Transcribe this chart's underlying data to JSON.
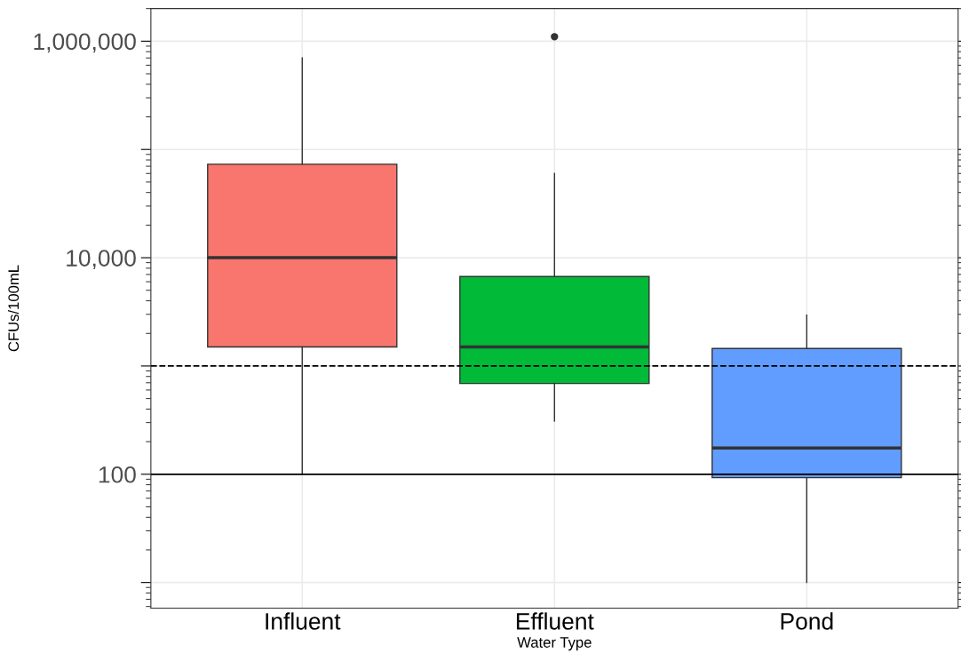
{
  "chart_data": {
    "type": "box",
    "xlabel": "Water Type",
    "ylabel": "CFUs/100mL",
    "categories": [
      "Influent",
      "Effluent",
      "Pond"
    ],
    "colors": [
      "#f8766d",
      "#00ba38",
      "#619cff"
    ],
    "boxes": [
      {
        "low": 100,
        "q1": 1500,
        "median": 10000,
        "q3": 73000,
        "high": 700000
      },
      {
        "low": 310,
        "q1": 690,
        "median": 1500,
        "q3": 6700,
        "high": 60000,
        "outliers": [
          1100000
        ]
      },
      {
        "low": 10,
        "q1": 93,
        "median": 175,
        "q3": 1450,
        "high": 2950
      }
    ],
    "log": "y",
    "ylim": [
      5.8,
      2000000
    ],
    "yticks": [
      {
        "value": 10,
        "label": null
      },
      100,
      {
        "value": 1000,
        "label": null
      },
      {
        "value": 10000,
        "label": "10,000"
      },
      {
        "value": 100000,
        "label": null
      },
      {
        "value": 1000000,
        "label": "1,000,000"
      }
    ],
    "grid": true,
    "ref_lines": [
      {
        "axis": "y",
        "value": 100,
        "line_style": "solid",
        "color": "#000000"
      },
      {
        "axis": "y",
        "value": 1000,
        "line_style": "dashed",
        "color": "#000000"
      }
    ]
  }
}
